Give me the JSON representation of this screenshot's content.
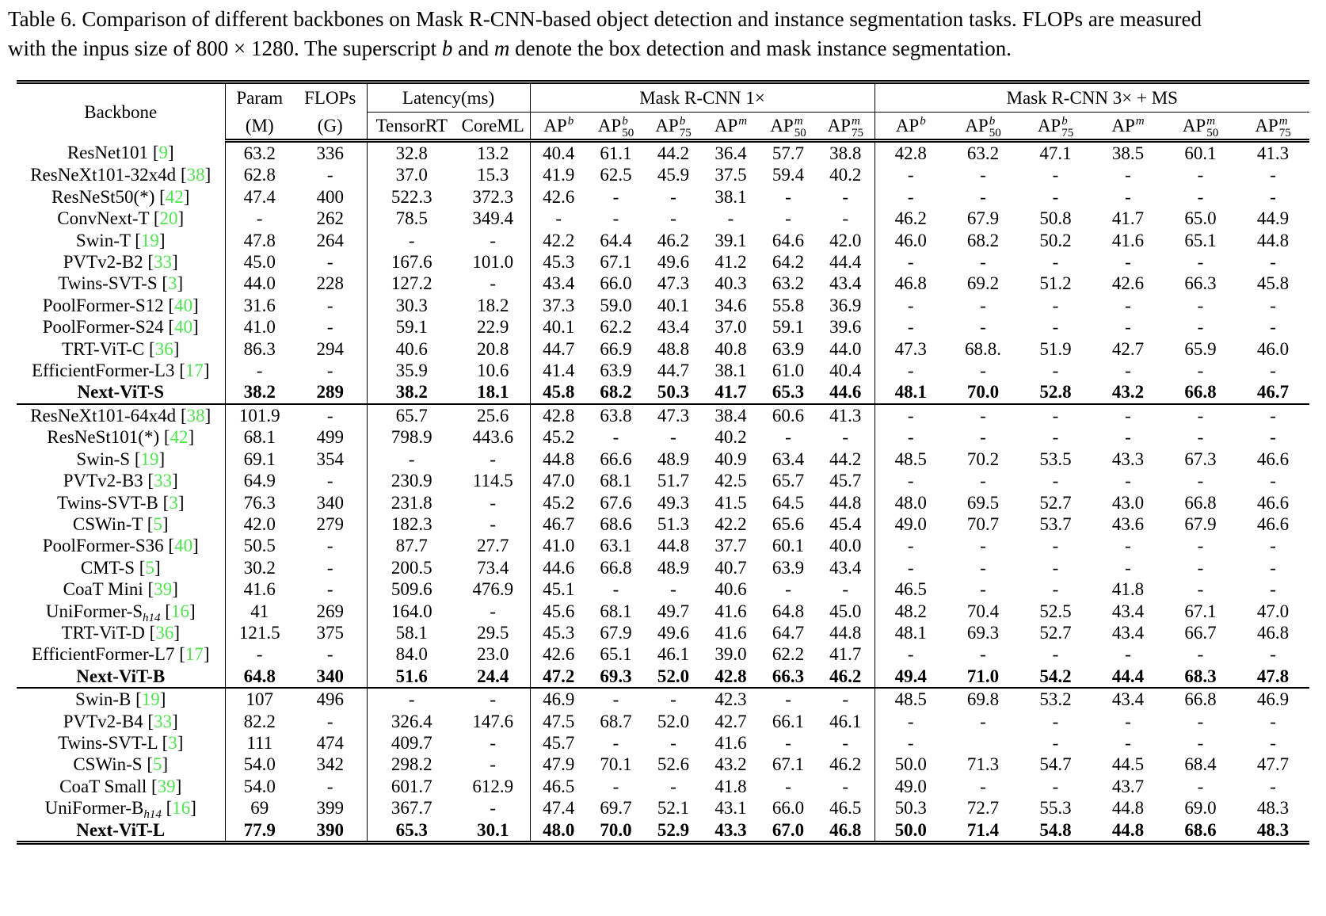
{
  "page": {
    "background": "#ffffff",
    "text_color": "#000000",
    "citation_color": "#50e450"
  },
  "caption": {
    "parts": [
      {
        "t": "Table 6. Comparison of different backbones on Mask R-CNN-based object detection and instance segmentation tasks. FLOPs are measured"
      },
      {
        "br": true
      },
      {
        "t": "with the inpus size of 800 × 1280. The superscript "
      },
      {
        "t": "b",
        "i": true
      },
      {
        "t": " and "
      },
      {
        "t": "m",
        "i": true
      },
      {
        "t": " denote the box detection and mask instance segmentation."
      }
    ]
  },
  "table": {
    "header": {
      "backbone": "Backbone",
      "param_line1": "Param",
      "param_line2": "(M)",
      "flops_line1": "FLOPs",
      "flops_line2": "(G)",
      "latency_group": "Latency(ms)",
      "latency_cols": [
        "TensorRT",
        "CoreML"
      ],
      "group_1x": "Mask R-CNN 1×",
      "group_3x": "Mask R-CNN 3× + MS",
      "ap_columns": [
        {
          "base": "AP",
          "sup": "b",
          "sub": ""
        },
        {
          "base": "AP",
          "sup": "b",
          "sub": "50"
        },
        {
          "base": "AP",
          "sup": "b",
          "sub": "75"
        },
        {
          "base": "AP",
          "sup": "m",
          "sub": ""
        },
        {
          "base": "AP",
          "sup": "m",
          "sub": "50"
        },
        {
          "base": "AP",
          "sup": "m",
          "sub": "75"
        }
      ]
    },
    "sections": [
      {
        "rows": [
          {
            "name": "ResNet101",
            "cite": "9",
            "bold": false,
            "values": [
              "63.2",
              "336",
              "32.8",
              "13.2",
              "40.4",
              "61.1",
              "44.2",
              "36.4",
              "57.7",
              "38.8",
              "42.8",
              "63.2",
              "47.1",
              "38.5",
              "60.1",
              "41.3"
            ]
          },
          {
            "name": "ResNeXt101-32x4d",
            "cite": "38",
            "bold": false,
            "values": [
              "62.8",
              "-",
              "37.0",
              "15.3",
              "41.9",
              "62.5",
              "45.9",
              "37.5",
              "59.4",
              "40.2",
              "-",
              "-",
              "-",
              "-",
              "-",
              "-"
            ]
          },
          {
            "name": "ResNeSt50(*)",
            "cite": "42",
            "bold": false,
            "values": [
              "47.4",
              "400",
              "522.3",
              "372.3",
              "42.6",
              "-",
              "-",
              "38.1",
              "-",
              "-",
              "-",
              "-",
              "-",
              "-",
              "-",
              "-"
            ]
          },
          {
            "name": "ConvNext-T",
            "cite": "20",
            "bold": false,
            "values": [
              "-",
              "262",
              "78.5",
              "349.4",
              "-",
              "-",
              "-",
              "-",
              "-",
              "-",
              "46.2",
              "67.9",
              "50.8",
              "41.7",
              "65.0",
              "44.9"
            ]
          },
          {
            "name": "Swin-T",
            "cite": "19",
            "bold": false,
            "values": [
              "47.8",
              "264",
              "-",
              "-",
              "42.2",
              "64.4",
              "46.2",
              "39.1",
              "64.6",
              "42.0",
              "46.0",
              "68.2",
              "50.2",
              "41.6",
              "65.1",
              "44.8"
            ]
          },
          {
            "name": "PVTv2-B2",
            "cite": "33",
            "bold": false,
            "values": [
              "45.0",
              "-",
              "167.6",
              "101.0",
              "45.3",
              "67.1",
              "49.6",
              "41.2",
              "64.2",
              "44.4",
              "-",
              "-",
              "-",
              "-",
              "-",
              "-"
            ]
          },
          {
            "name": "Twins-SVT-S",
            "cite": "3",
            "bold": false,
            "values": [
              "44.0",
              "228",
              "127.2",
              "-",
              "43.4",
              "66.0",
              "47.3",
              "40.3",
              "63.2",
              "43.4",
              "46.8",
              "69.2",
              "51.2",
              "42.6",
              "66.3",
              "45.8"
            ]
          },
          {
            "name": "PoolFormer-S12",
            "cite": "40",
            "bold": false,
            "values": [
              "31.6",
              "-",
              "30.3",
              "18.2",
              "37.3",
              "59.0",
              "40.1",
              "34.6",
              "55.8",
              "36.9",
              "-",
              "-",
              "-",
              "-",
              "-",
              "-"
            ]
          },
          {
            "name": "PoolFormer-S24",
            "cite": "40",
            "bold": false,
            "values": [
              "41.0",
              "-",
              "59.1",
              "22.9",
              "40.1",
              "62.2",
              "43.4",
              "37.0",
              "59.1",
              "39.6",
              "-",
              "-",
              "-",
              "-",
              "-",
              "-"
            ]
          },
          {
            "name": "TRT-ViT-C",
            "cite": "36",
            "bold": false,
            "values": [
              "86.3",
              "294",
              "40.6",
              "20.8",
              "44.7",
              "66.9",
              "48.8",
              "40.8",
              "63.9",
              "44.0",
              "47.3",
              "68.8.",
              "51.9",
              "42.7",
              "65.9",
              "46.0"
            ]
          },
          {
            "name": "EfficientFormer-L3",
            "cite": "17",
            "bold": false,
            "values": [
              "-",
              "-",
              "35.9",
              "10.6",
              "41.4",
              "63.9",
              "44.7",
              "38.1",
              "61.0",
              "40.4",
              "-",
              "-",
              "-",
              "-",
              "-",
              "-"
            ]
          },
          {
            "name": "Next-ViT-S",
            "cite": null,
            "bold": true,
            "values": [
              "38.2",
              "289",
              "38.2",
              "18.1",
              "45.8",
              "68.2",
              "50.3",
              "41.7",
              "65.3",
              "44.6",
              "48.1",
              "70.0",
              "52.8",
              "43.2",
              "66.8",
              "46.7"
            ]
          }
        ]
      },
      {
        "rows": [
          {
            "name": "ResNeXt101-64x4d",
            "cite": "38",
            "bold": false,
            "values": [
              "101.9",
              "-",
              "65.7",
              "25.6",
              "42.8",
              "63.8",
              "47.3",
              "38.4",
              "60.6",
              "41.3",
              "-",
              "-",
              "-",
              "-",
              "-",
              "-"
            ]
          },
          {
            "name": "ResNeSt101(*)",
            "cite": "42",
            "bold": false,
            "values": [
              "68.1",
              "499",
              "798.9",
              "443.6",
              "45.2",
              "-",
              "-",
              "40.2",
              "-",
              "-",
              "-",
              "-",
              "-",
              "-",
              "-",
              "-"
            ]
          },
          {
            "name": "Swin-S",
            "cite": "19",
            "bold": false,
            "values": [
              "69.1",
              "354",
              "-",
              "-",
              "44.8",
              "66.6",
              "48.9",
              "40.9",
              "63.4",
              "44.2",
              "48.5",
              "70.2",
              "53.5",
              "43.3",
              "67.3",
              "46.6"
            ]
          },
          {
            "name": "PVTv2-B3",
            "cite": "33",
            "bold": false,
            "values": [
              "64.9",
              "-",
              "230.9",
              "114.5",
              "47.0",
              "68.1",
              "51.7",
              "42.5",
              "65.7",
              "45.7",
              "-",
              "-",
              "-",
              "-",
              "-",
              "-"
            ]
          },
          {
            "name": "Twins-SVT-B",
            "cite": "3",
            "bold": false,
            "values": [
              "76.3",
              "340",
              "231.8",
              "-",
              "45.2",
              "67.6",
              "49.3",
              "41.5",
              "64.5",
              "44.8",
              "48.0",
              "69.5",
              "52.7",
              "43.0",
              "66.8",
              "46.6"
            ]
          },
          {
            "name": "CSWin-T",
            "cite": "5",
            "bold": false,
            "values": [
              "42.0",
              "279",
              "182.3",
              "-",
              "46.7",
              "68.6",
              "51.3",
              "42.2",
              "65.6",
              "45.4",
              "49.0",
              "70.7",
              "53.7",
              "43.6",
              "67.9",
              "46.6"
            ]
          },
          {
            "name": "PoolFormer-S36",
            "cite": "40",
            "bold": false,
            "values": [
              "50.5",
              "-",
              "87.7",
              "27.7",
              "41.0",
              "63.1",
              "44.8",
              "37.7",
              "60.1",
              "40.0",
              "-",
              "-",
              "-",
              "-",
              "-",
              "-"
            ]
          },
          {
            "name": "CMT-S",
            "cite": "5",
            "bold": false,
            "values": [
              "30.2",
              "-",
              "200.5",
              "73.4",
              "44.6",
              "66.8",
              "48.9",
              "40.7",
              "63.9",
              "43.4",
              "-",
              "-",
              "-",
              "-",
              "-",
              "-"
            ]
          },
          {
            "name": "CoaT Mini",
            "cite": "39",
            "bold": false,
            "values": [
              "41.6",
              "-",
              "509.6",
              "476.9",
              "45.1",
              "-",
              "-",
              "40.6",
              "-",
              "-",
              "46.5",
              "-",
              "-",
              "41.8",
              "-",
              "-"
            ]
          },
          {
            "name": "UniFormer-S",
            "name_sub": "h14",
            "cite": "16",
            "bold": false,
            "values": [
              "41",
              "269",
              "164.0",
              "-",
              "45.6",
              "68.1",
              "49.7",
              "41.6",
              "64.8",
              "45.0",
              "48.2",
              "70.4",
              "52.5",
              "43.4",
              "67.1",
              "47.0"
            ]
          },
          {
            "name": "TRT-ViT-D",
            "cite": "36",
            "bold": false,
            "values": [
              "121.5",
              "375",
              "58.1",
              "29.5",
              "45.3",
              "67.9",
              "49.6",
              "41.6",
              "64.7",
              "44.8",
              "48.1",
              "69.3",
              "52.7",
              "43.4",
              "66.7",
              "46.8"
            ]
          },
          {
            "name": "EfficientFormer-L7",
            "cite": "17",
            "bold": false,
            "values": [
              "-",
              "-",
              "84.0",
              "23.0",
              "42.6",
              "65.1",
              "46.1",
              "39.0",
              "62.2",
              "41.7",
              "-",
              "-",
              "-",
              "-",
              "-",
              "-"
            ]
          },
          {
            "name": "Next-ViT-B",
            "cite": null,
            "bold": true,
            "values": [
              "64.8",
              "340",
              "51.6",
              "24.4",
              "47.2",
              "69.3",
              "52.0",
              "42.8",
              "66.3",
              "46.2",
              "49.4",
              "71.0",
              "54.2",
              "44.4",
              "68.3",
              "47.8"
            ]
          }
        ]
      },
      {
        "rows": [
          {
            "name": "Swin-B",
            "cite": "19",
            "bold": false,
            "values": [
              "107",
              "496",
              "-",
              "-",
              "46.9",
              "-",
              "-",
              "42.3",
              "-",
              "-",
              "48.5",
              "69.8",
              "53.2",
              "43.4",
              "66.8",
              "46.9"
            ]
          },
          {
            "name": "PVTv2-B4",
            "cite": "33",
            "bold": false,
            "values": [
              "82.2",
              "-",
              "326.4",
              "147.6",
              "47.5",
              "68.7",
              "52.0",
              "42.7",
              "66.1",
              "46.1",
              "-",
              "-",
              "-",
              "-",
              "-",
              "-"
            ]
          },
          {
            "name": "Twins-SVT-L",
            "cite": "3",
            "bold": false,
            "values": [
              "111",
              "474",
              "409.7",
              "-",
              "45.7",
              "-",
              "-",
              "41.6",
              "-",
              "-",
              "-",
              "",
              "-",
              "-",
              "-",
              "-"
            ]
          },
          {
            "name": "CSWin-S",
            "cite": "5",
            "bold": false,
            "values": [
              "54.0",
              "342",
              "298.2",
              "-",
              "47.9",
              "70.1",
              "52.6",
              "43.2",
              "67.1",
              "46.2",
              "50.0",
              "71.3",
              "54.7",
              "44.5",
              "68.4",
              "47.7"
            ]
          },
          {
            "name": "CoaT Small",
            "cite": "39",
            "bold": false,
            "values": [
              "54.0",
              "-",
              "601.7",
              "612.9",
              "46.5",
              "-",
              "-",
              "41.8",
              "-",
              "-",
              "49.0",
              "-",
              "-",
              "43.7",
              "-",
              "-"
            ]
          },
          {
            "name": "UniFormer-B",
            "name_sub": "h14",
            "cite": "16",
            "bold": false,
            "values": [
              "69",
              "399",
              "367.7",
              "-",
              "47.4",
              "69.7",
              "52.1",
              "43.1",
              "66.0",
              "46.5",
              "50.3",
              "72.7",
              "55.3",
              "44.8",
              "69.0",
              "48.3"
            ]
          },
          {
            "name": "Next-ViT-L",
            "cite": null,
            "bold": true,
            "values": [
              "77.9",
              "390",
              "65.3",
              "30.1",
              "48.0",
              "70.0",
              "52.9",
              "43.3",
              "67.0",
              "46.8",
              "50.0",
              "71.4",
              "54.8",
              "44.8",
              "68.6",
              "48.3"
            ]
          }
        ]
      }
    ]
  }
}
